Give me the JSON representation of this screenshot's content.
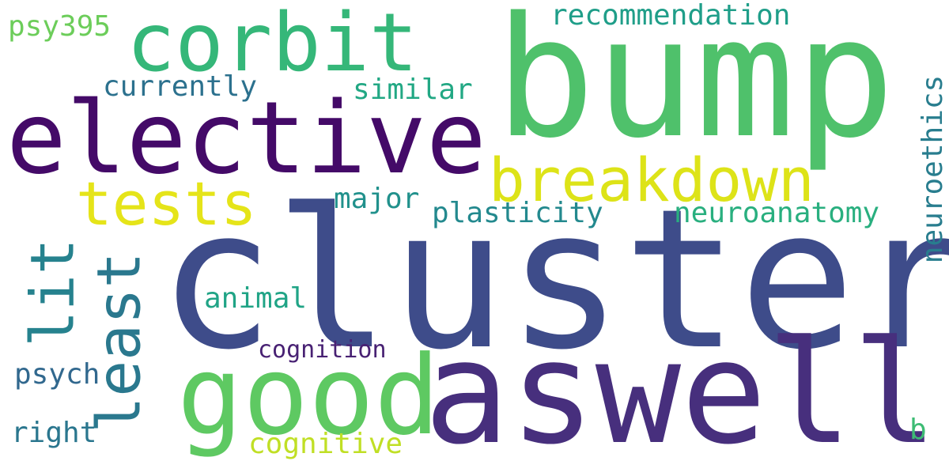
{
  "words": [
    {
      "text": "bump",
      "color": "#4fc16b"
    },
    {
      "text": "cluster",
      "color": "#3e4c8a"
    },
    {
      "text": "aswell",
      "color": "#472f7d"
    },
    {
      "text": "elective",
      "color": "#440a68"
    },
    {
      "text": "corbit",
      "color": "#35b779"
    },
    {
      "text": "good",
      "color": "#5ec962"
    },
    {
      "text": "breakdown",
      "color": "#dde318"
    },
    {
      "text": "tests",
      "color": "#e5e419"
    },
    {
      "text": "least",
      "color": "#2a788e"
    },
    {
      "text": "lit",
      "color": "#26828e"
    },
    {
      "text": "recommendation",
      "color": "#1f9e89"
    },
    {
      "text": "psy395",
      "color": "#6ccd5a"
    },
    {
      "text": "currently",
      "color": "#2c718e"
    },
    {
      "text": "similar",
      "color": "#22a884"
    },
    {
      "text": "major",
      "color": "#21918c"
    },
    {
      "text": "plasticity",
      "color": "#23898e"
    },
    {
      "text": "neuroanatomy",
      "color": "#29af7f"
    },
    {
      "text": "neuroethics",
      "color": "#287d8e"
    },
    {
      "text": "animal",
      "color": "#20a486"
    },
    {
      "text": "cognition",
      "color": "#482173"
    },
    {
      "text": "psych",
      "color": "#31688e"
    },
    {
      "text": "right",
      "color": "#2a768e"
    },
    {
      "text": "cognitive",
      "color": "#c0df25"
    },
    {
      "text": "b",
      "color": "#3dbc74"
    }
  ]
}
